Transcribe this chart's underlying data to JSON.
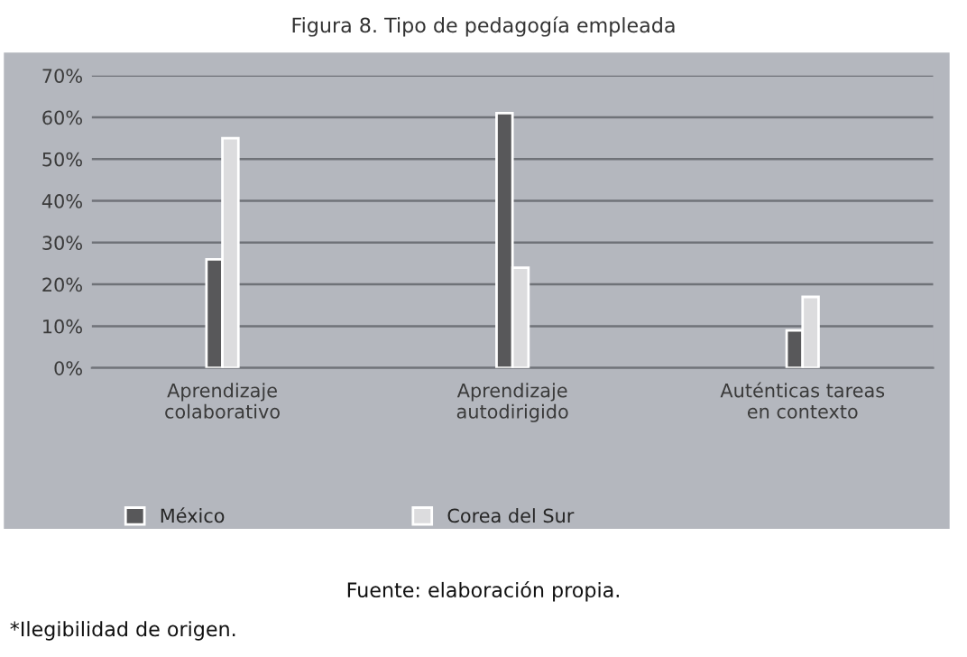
{
  "chart_data": {
    "type": "bar",
    "title": "Figura 8. Tipo de pedagogía empleada",
    "categories": [
      "Aprendizaje\ncolaborativo",
      "Aprendizaje\nautodirigido",
      "Auténticas tareas\nen contexto"
    ],
    "series": [
      {
        "name": "México",
        "color": "#58585a",
        "values": [
          26,
          61,
          9
        ]
      },
      {
        "name": "Corea del Sur",
        "color": "#dcdcde",
        "values": [
          55,
          24,
          17
        ]
      }
    ],
    "ylim": [
      0,
      70
    ],
    "yticks": [
      {
        "value": 0,
        "label": "0%"
      },
      {
        "value": 10,
        "label": "10%"
      },
      {
        "value": 20,
        "label": "20%"
      },
      {
        "value": 30,
        "label": "30%"
      },
      {
        "value": 40,
        "label": "40%"
      },
      {
        "value": 50,
        "label": "50%"
      },
      {
        "value": 60,
        "label": "60%"
      },
      {
        "value": 70,
        "label": "70%"
      }
    ],
    "grid": "y",
    "legend": "bottom left",
    "annotations": [
      "Fuente: elaboración propia.",
      "*Ilegibilidad de origen."
    ]
  }
}
